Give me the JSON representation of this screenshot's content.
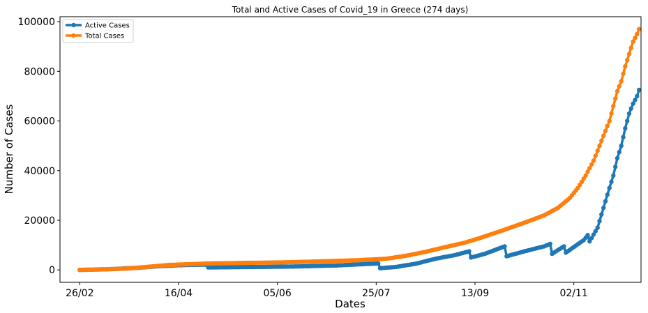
{
  "chart_data": {
    "type": "line",
    "title": "Total and Active Cases of Covid_19 in Greece (274 days)",
    "xlabel": "Dates",
    "ylabel": "Number of Cases",
    "x_tick_labels": [
      "26/02",
      "16/04",
      "05/06",
      "25/07",
      "13/09",
      "02/11"
    ],
    "x_tick_days": [
      0,
      50,
      100,
      150,
      200,
      250
    ],
    "y_ticks": [
      0,
      20000,
      40000,
      60000,
      80000,
      100000
    ],
    "ylim": [
      -5000,
      102000
    ],
    "xlim": [
      -10,
      284
    ],
    "legend_position": "top-left",
    "grid": false,
    "series": [
      {
        "name": "Active Cases",
        "color": "#1f77b4",
        "points": [
          [
            0,
            0
          ],
          [
            15,
            300
          ],
          [
            30,
            900
          ],
          [
            40,
            1500
          ],
          [
            50,
            1900
          ],
          [
            60,
            2100
          ],
          [
            64,
            2100
          ],
          [
            65,
            1000
          ],
          [
            75,
            1100
          ],
          [
            90,
            1200
          ],
          [
            110,
            1400
          ],
          [
            130,
            1800
          ],
          [
            140,
            2200
          ],
          [
            151,
            2600
          ],
          [
            152,
            700
          ],
          [
            160,
            1200
          ],
          [
            170,
            2500
          ],
          [
            180,
            4500
          ],
          [
            190,
            6000
          ],
          [
            197,
            7500
          ],
          [
            198,
            5000
          ],
          [
            205,
            6500
          ],
          [
            215,
            9500
          ],
          [
            216,
            5500
          ],
          [
            225,
            7500
          ],
          [
            235,
            9500
          ],
          [
            238,
            10500
          ],
          [
            239,
            6500
          ],
          [
            245,
            9500
          ],
          [
            246,
            7000
          ],
          [
            255,
            12000
          ],
          [
            257,
            14000
          ],
          [
            258,
            11500
          ],
          [
            262,
            17000
          ],
          [
            265,
            25000
          ],
          [
            268,
            33000
          ],
          [
            270,
            38000
          ],
          [
            272,
            45000
          ],
          [
            274,
            50000
          ],
          [
            276,
            57000
          ],
          [
            278,
            63000
          ],
          [
            280,
            67000
          ],
          [
            282,
            70000
          ],
          [
            283,
            72500
          ]
        ]
      },
      {
        "name": "Total Cases",
        "color": "#ff7f0e",
        "points": [
          [
            0,
            0
          ],
          [
            15,
            300
          ],
          [
            25,
            600
          ],
          [
            35,
            1300
          ],
          [
            45,
            2000
          ],
          [
            55,
            2300
          ],
          [
            65,
            2600
          ],
          [
            80,
            2800
          ],
          [
            100,
            3000
          ],
          [
            120,
            3400
          ],
          [
            140,
            3900
          ],
          [
            155,
            4500
          ],
          [
            165,
            5700
          ],
          [
            175,
            7300
          ],
          [
            185,
            9200
          ],
          [
            195,
            11000
          ],
          [
            205,
            13500
          ],
          [
            215,
            16200
          ],
          [
            225,
            19000
          ],
          [
            235,
            22000
          ],
          [
            242,
            25000
          ],
          [
            248,
            29000
          ],
          [
            252,
            33000
          ],
          [
            256,
            38000
          ],
          [
            260,
            44000
          ],
          [
            264,
            52000
          ],
          [
            268,
            60000
          ],
          [
            270,
            66000
          ],
          [
            272,
            72000
          ],
          [
            274,
            76000
          ],
          [
            276,
            82000
          ],
          [
            278,
            87000
          ],
          [
            280,
            92000
          ],
          [
            282,
            95000
          ],
          [
            283,
            97000
          ]
        ]
      }
    ]
  }
}
